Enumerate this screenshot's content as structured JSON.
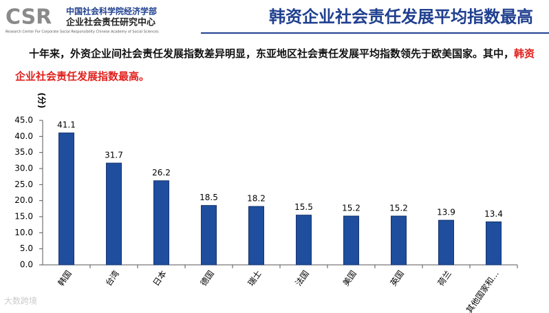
{
  "header": {
    "logo_mark": "CSR",
    "logo_line1": "中国社会科学院经济学部",
    "logo_line2": "企业社会责任研究中心",
    "logo_english": "Research Center For Corporate Social Responsibility Chinese Academy of Social Sciences",
    "title": "韩资企业社会责任发展平均指数最高"
  },
  "paragraph": {
    "text": "十年来，外资企业间社会责任发展指数差异明显，东亚地区社会责任发展平均指数领先于欧美国家。其中，",
    "highlight": "韩资企业社会责任发展指数最高。"
  },
  "watermark": "大数跨境",
  "chart_data": {
    "type": "bar",
    "y_label": "(分)",
    "categories": [
      "韩国",
      "台湾",
      "日本",
      "德国",
      "瑞士",
      "法国",
      "美国",
      "英国",
      "荷兰",
      "其他国家和…"
    ],
    "values": [
      41.1,
      31.7,
      26.2,
      18.5,
      18.2,
      15.5,
      15.2,
      15.2,
      13.9,
      13.4
    ],
    "color": "#1f4e9e",
    "ylim": [
      0,
      45
    ],
    "yticks": [
      {
        "value": 0,
        "label": "0.0"
      },
      {
        "value": 5,
        "label": "5.0"
      },
      {
        "value": 10,
        "label": "10.0"
      },
      {
        "value": 15,
        "label": "15.0"
      },
      {
        "value": 20,
        "label": "20.0"
      },
      {
        "value": 25,
        "label": "25.0"
      },
      {
        "value": 30,
        "label": "30.0"
      },
      {
        "value": 35,
        "label": "35.0"
      },
      {
        "value": 40,
        "label": "40.0"
      },
      {
        "value": 45,
        "label": "45.0"
      }
    ]
  }
}
